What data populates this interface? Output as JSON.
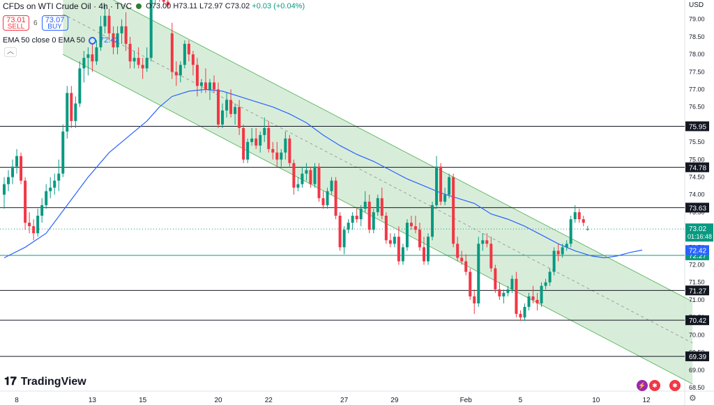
{
  "header": {
    "symbol": "CFDs on WTI Crude Oil · 4h · TVC",
    "open": "O73.00",
    "high": "H73.11",
    "low": "L72.97",
    "close": "C73.02",
    "change": "+0.03 (+0.04%)"
  },
  "trade": {
    "sell_price": "73.01",
    "sell_label": "SELL",
    "spread": "6",
    "buy_price": "73.07",
    "buy_label": "BUY"
  },
  "indicator": {
    "label": "EMA 50 close 0 EMA 50",
    "value": "72.42"
  },
  "currency": "USD",
  "logo": {
    "text": "TradingView"
  },
  "colors": {
    "up": "#089981",
    "down": "#f23645",
    "ema": "#2962ff",
    "channel": "#c8e6c9"
  },
  "chart_data": {
    "type": "candlestick",
    "interval": "4h",
    "ylim": [
      68.4,
      79.55
    ],
    "y_ticks": [
      "68.50",
      "69.00",
      "69.50",
      "70.00",
      "70.50",
      "71.00",
      "71.50",
      "72.00",
      "72.50",
      "73.00",
      "73.50",
      "74.00",
      "74.50",
      "75.00",
      "75.50",
      "76.00",
      "76.50",
      "77.00",
      "77.50",
      "78.00",
      "78.50",
      "79.00"
    ],
    "x_ticks": [
      {
        "label": "8",
        "i": 3
      },
      {
        "label": "13",
        "i": 21
      },
      {
        "label": "15",
        "i": 33
      },
      {
        "label": "20",
        "i": 51
      },
      {
        "label": "22",
        "i": 63
      },
      {
        "label": "27",
        "i": 81
      },
      {
        "label": "29",
        "i": 93
      },
      {
        "label": "Feb",
        "i": 110
      },
      {
        "label": "5",
        "i": 123
      },
      {
        "label": "10",
        "i": 141
      },
      {
        "label": "12",
        "i": 153
      }
    ],
    "levels": [
      {
        "label": "75.95",
        "value": 75.95
      },
      {
        "label": "74.78",
        "value": 74.78
      },
      {
        "label": "73.63",
        "value": 73.63
      },
      {
        "label": "72.27",
        "value": 72.27,
        "color": "#089981"
      },
      {
        "label": "71.27",
        "value": 71.27
      },
      {
        "label": "70.42",
        "value": 70.42
      },
      {
        "label": "69.39",
        "value": 69.39
      }
    ],
    "last_price": {
      "label": "73.02",
      "value": 73.02,
      "countdown": "01:16:48"
    },
    "ema_label": {
      "label": "72.42",
      "value": 72.42
    },
    "channel": {
      "upper": [
        {
          "i": 14,
          "v": 80.3
        },
        {
          "i": 164,
          "v": 70.95
        }
      ],
      "lower": [
        {
          "i": 14,
          "v": 78.0
        },
        {
          "i": 164,
          "v": 68.6
        }
      ],
      "mid": [
        {
          "i": 14,
          "v": 79.15
        },
        {
          "i": 164,
          "v": 69.77
        }
      ]
    },
    "ohlc": [
      [
        74.0,
        74.5,
        73.6,
        74.3
      ],
      [
        74.3,
        74.7,
        74.1,
        74.5
      ],
      [
        74.5,
        75.0,
        74.3,
        74.8
      ],
      [
        74.8,
        75.3,
        74.6,
        75.1
      ],
      [
        75.1,
        75.2,
        74.3,
        74.4
      ],
      [
        74.4,
        74.5,
        73.0,
        73.2
      ],
      [
        73.2,
        73.5,
        72.9,
        73.1
      ],
      [
        73.1,
        73.3,
        72.7,
        72.9
      ],
      [
        72.9,
        73.6,
        72.8,
        73.4
      ],
      [
        73.4,
        73.9,
        73.2,
        73.7
      ],
      [
        73.7,
        74.3,
        73.6,
        74.1
      ],
      [
        74.1,
        74.5,
        73.9,
        74.2
      ],
      [
        74.2,
        74.6,
        74.0,
        74.4
      ],
      [
        74.4,
        75.0,
        74.1,
        74.6
      ],
      [
        74.6,
        76.0,
        74.5,
        75.8
      ],
      [
        75.8,
        77.1,
        75.6,
        76.9
      ],
      [
        76.9,
        77.1,
        75.9,
        76.1
      ],
      [
        76.1,
        76.8,
        75.9,
        76.6
      ],
      [
        76.6,
        77.8,
        76.5,
        77.6
      ],
      [
        77.6,
        78.1,
        77.2,
        77.9
      ],
      [
        77.9,
        78.2,
        77.4,
        78.0
      ],
      [
        78.0,
        78.3,
        77.5,
        77.8
      ],
      [
        77.8,
        78.4,
        77.7,
        78.2
      ],
      [
        78.2,
        79.1,
        78.1,
        78.8
      ],
      [
        78.8,
        79.4,
        78.6,
        79.1
      ],
      [
        79.1,
        79.3,
        78.4,
        78.6
      ],
      [
        78.6,
        78.8,
        78.0,
        78.2
      ],
      [
        78.2,
        78.8,
        78.0,
        78.6
      ],
      [
        78.6,
        79.0,
        78.3,
        78.8
      ],
      [
        78.8,
        79.2,
        78.1,
        78.3
      ],
      [
        78.3,
        78.5,
        77.6,
        77.8
      ],
      [
        77.8,
        78.1,
        77.6,
        77.9
      ],
      [
        77.9,
        78.2,
        77.6,
        77.7
      ],
      [
        77.7,
        77.9,
        77.3,
        77.6
      ],
      [
        77.6,
        78.2,
        77.5,
        77.9
      ],
      [
        77.9,
        79.8,
        77.8,
        79.6
      ],
      [
        79.6,
        79.8,
        79.4,
        79.7
      ],
      [
        79.7,
        79.8,
        79.5,
        79.6
      ],
      [
        79.6,
        79.7,
        79.4,
        79.5
      ],
      [
        79.5,
        79.6,
        79.3,
        79.4
      ],
      [
        78.6,
        78.9,
        77.3,
        77.5
      ],
      [
        77.5,
        77.8,
        77.1,
        77.4
      ],
      [
        77.4,
        77.8,
        77.2,
        77.7
      ],
      [
        77.7,
        78.4,
        77.6,
        78.3
      ],
      [
        78.3,
        78.4,
        77.8,
        78.0
      ],
      [
        78.0,
        78.1,
        77.4,
        77.7
      ],
      [
        77.7,
        77.9,
        76.8,
        77.1
      ],
      [
        77.1,
        77.3,
        76.9,
        77.2
      ],
      [
        77.2,
        77.6,
        76.9,
        77.0
      ],
      [
        77.0,
        77.3,
        76.7,
        77.2
      ],
      [
        77.2,
        77.4,
        76.9,
        77.0
      ],
      [
        77.0,
        77.2,
        75.9,
        76.0
      ],
      [
        76.0,
        76.6,
        75.9,
        76.4
      ],
      [
        76.4,
        76.9,
        76.2,
        76.7
      ],
      [
        76.7,
        77.0,
        76.2,
        76.3
      ],
      [
        76.3,
        76.6,
        76.0,
        76.5
      ],
      [
        76.5,
        76.7,
        75.7,
        75.9
      ],
      [
        75.9,
        76.0,
        74.9,
        75.0
      ],
      [
        75.0,
        75.6,
        74.9,
        75.5
      ],
      [
        75.5,
        75.9,
        75.4,
        75.6
      ],
      [
        75.6,
        75.9,
        75.3,
        75.4
      ],
      [
        75.4,
        75.8,
        75.2,
        75.7
      ],
      [
        75.7,
        76.2,
        75.5,
        75.9
      ],
      [
        75.9,
        76.1,
        75.2,
        75.3
      ],
      [
        75.3,
        75.5,
        75.0,
        75.2
      ],
      [
        75.2,
        75.5,
        74.8,
        75.0
      ],
      [
        75.0,
        75.3,
        74.8,
        75.2
      ],
      [
        75.2,
        75.8,
        75.0,
        75.6
      ],
      [
        75.6,
        75.7,
        74.8,
        74.9
      ],
      [
        74.9,
        75.0,
        74.0,
        74.2
      ],
      [
        74.2,
        74.5,
        74.1,
        74.3
      ],
      [
        74.3,
        74.8,
        74.2,
        74.6
      ],
      [
        74.6,
        74.9,
        74.4,
        74.7
      ],
      [
        74.7,
        74.8,
        74.2,
        74.3
      ],
      [
        74.3,
        74.9,
        74.2,
        74.8
      ],
      [
        74.8,
        74.9,
        73.8,
        73.9
      ],
      [
        73.9,
        74.1,
        73.6,
        73.7
      ],
      [
        73.7,
        74.2,
        73.6,
        74.1
      ],
      [
        74.1,
        74.5,
        74.0,
        74.4
      ],
      [
        74.4,
        74.5,
        73.3,
        73.4
      ],
      [
        73.4,
        73.5,
        72.4,
        72.5
      ],
      [
        72.5,
        73.1,
        72.3,
        73.0
      ],
      [
        73.0,
        73.3,
        72.9,
        73.2
      ],
      [
        73.2,
        73.5,
        73.0,
        73.4
      ],
      [
        73.4,
        73.6,
        73.2,
        73.3
      ],
      [
        73.3,
        73.7,
        73.1,
        73.6
      ],
      [
        73.6,
        74.1,
        73.5,
        73.8
      ],
      [
        73.8,
        74.0,
        72.9,
        73.0
      ],
      [
        73.0,
        73.6,
        72.9,
        73.5
      ],
      [
        73.5,
        74.0,
        73.4,
        73.9
      ],
      [
        73.9,
        74.2,
        73.3,
        73.4
      ],
      [
        73.4,
        73.5,
        72.6,
        72.7
      ],
      [
        72.7,
        72.9,
        72.5,
        72.6
      ],
      [
        72.6,
        72.9,
        72.5,
        72.8
      ],
      [
        72.8,
        73.1,
        72.0,
        72.1
      ],
      [
        72.1,
        72.6,
        72.0,
        72.5
      ],
      [
        72.5,
        73.3,
        72.4,
        73.2
      ],
      [
        73.2,
        73.4,
        73.0,
        73.1
      ],
      [
        73.1,
        73.4,
        72.9,
        73.0
      ],
      [
        73.0,
        73.2,
        72.4,
        72.5
      ],
      [
        72.5,
        72.8,
        72.0,
        72.1
      ],
      [
        72.1,
        72.9,
        72.0,
        72.8
      ],
      [
        72.8,
        73.8,
        72.7,
        73.7
      ],
      [
        73.7,
        75.1,
        73.6,
        74.8
      ],
      [
        74.8,
        74.9,
        73.7,
        73.8
      ],
      [
        73.8,
        74.2,
        73.7,
        74.0
      ],
      [
        74.0,
        74.6,
        73.9,
        74.5
      ],
      [
        74.5,
        74.6,
        72.5,
        72.6
      ],
      [
        72.6,
        72.8,
        72.1,
        72.2
      ],
      [
        72.2,
        72.4,
        72.0,
        72.1
      ],
      [
        72.1,
        72.3,
        71.7,
        71.8
      ],
      [
        71.8,
        71.9,
        71.0,
        71.1
      ],
      [
        71.1,
        71.3,
        70.6,
        70.9
      ],
      [
        70.9,
        72.8,
        70.8,
        72.6
      ],
      [
        72.6,
        72.9,
        72.4,
        72.7
      ],
      [
        72.7,
        72.9,
        72.5,
        72.6
      ],
      [
        72.6,
        72.8,
        71.8,
        71.9
      ],
      [
        71.9,
        72.0,
        71.2,
        71.3
      ],
      [
        71.3,
        71.5,
        71.0,
        71.1
      ],
      [
        71.1,
        71.3,
        70.9,
        71.2
      ],
      [
        71.2,
        71.4,
        71.1,
        71.3
      ],
      [
        71.3,
        71.7,
        71.2,
        71.6
      ],
      [
        71.6,
        71.8,
        70.5,
        70.6
      ],
      [
        70.6,
        70.7,
        70.4,
        70.5
      ],
      [
        70.5,
        70.9,
        70.4,
        70.8
      ],
      [
        70.8,
        71.2,
        70.7,
        71.1
      ],
      [
        71.1,
        71.4,
        70.9,
        71.0
      ],
      [
        71.0,
        71.2,
        70.7,
        70.9
      ],
      [
        70.9,
        71.5,
        70.8,
        71.4
      ],
      [
        71.4,
        71.6,
        71.3,
        71.5
      ],
      [
        71.5,
        71.9,
        71.4,
        71.8
      ],
      [
        71.8,
        72.5,
        71.7,
        72.4
      ],
      [
        72.4,
        72.6,
        72.1,
        72.3
      ],
      [
        72.3,
        72.6,
        72.2,
        72.5
      ],
      [
        72.5,
        72.7,
        72.4,
        72.6
      ],
      [
        72.6,
        73.4,
        72.5,
        73.3
      ],
      [
        73.3,
        73.7,
        73.2,
        73.5
      ],
      [
        73.5,
        73.6,
        73.2,
        73.3
      ],
      [
        73.3,
        73.4,
        73.1,
        73.2
      ],
      [
        73.0,
        73.11,
        72.97,
        73.02
      ]
    ],
    "ema": [
      [
        0,
        72.2
      ],
      [
        5,
        72.5
      ],
      [
        10,
        72.9
      ],
      [
        15,
        73.7
      ],
      [
        20,
        74.5
      ],
      [
        25,
        75.2
      ],
      [
        30,
        75.7
      ],
      [
        34,
        76.1
      ],
      [
        37,
        76.5
      ],
      [
        40,
        76.8
      ],
      [
        44,
        76.95
      ],
      [
        48,
        77.0
      ],
      [
        52,
        76.95
      ],
      [
        56,
        76.8
      ],
      [
        60,
        76.65
      ],
      [
        64,
        76.5
      ],
      [
        68,
        76.3
      ],
      [
        72,
        76.05
      ],
      [
        76,
        75.7
      ],
      [
        80,
        75.4
      ],
      [
        84,
        75.15
      ],
      [
        88,
        74.95
      ],
      [
        92,
        74.7
      ],
      [
        96,
        74.45
      ],
      [
        100,
        74.25
      ],
      [
        104,
        74.05
      ],
      [
        108,
        73.9
      ],
      [
        112,
        73.75
      ],
      [
        116,
        73.45
      ],
      [
        120,
        73.3
      ],
      [
        124,
        73.1
      ],
      [
        128,
        72.85
      ],
      [
        132,
        72.6
      ],
      [
        136,
        72.4
      ],
      [
        140,
        72.25
      ],
      [
        143,
        72.2
      ],
      [
        146,
        72.25
      ],
      [
        149,
        72.35
      ],
      [
        152,
        72.42
      ]
    ]
  }
}
